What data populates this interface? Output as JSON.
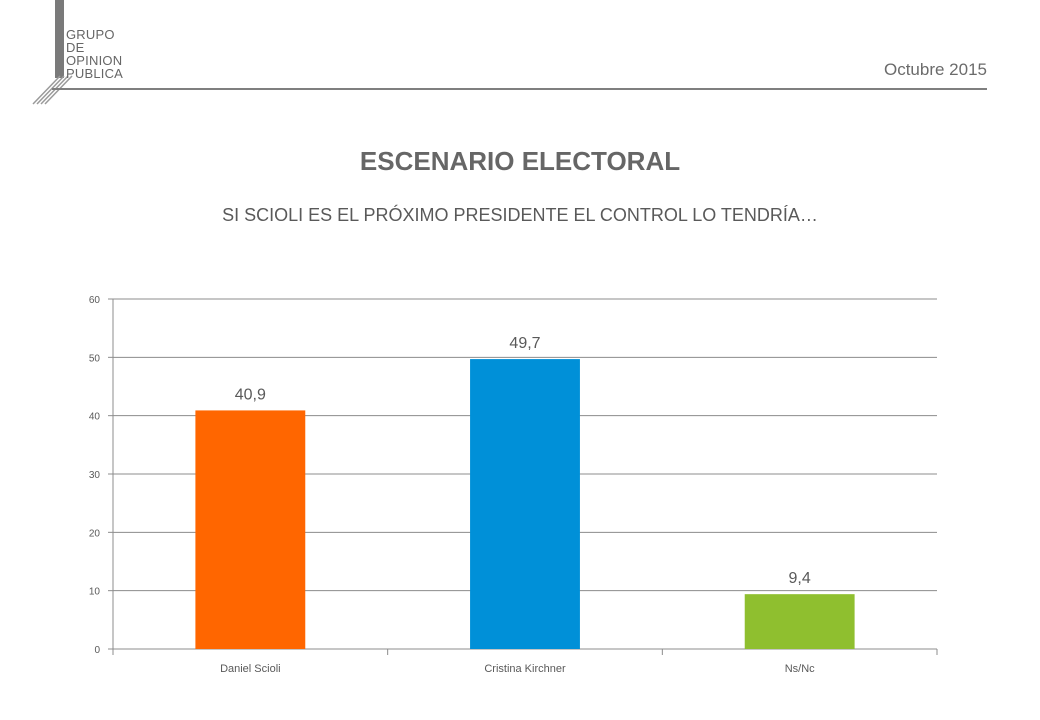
{
  "logo": {
    "lines": [
      "GRUPO",
      "DE",
      "OPINION",
      "PUBLICA"
    ]
  },
  "header": {
    "date": "Octubre 2015"
  },
  "chart_data": {
    "type": "bar",
    "title": "ESCENARIO ELECTORAL",
    "subtitle": "SI SCIOLI ES EL PRÓXIMO PRESIDENTE EL CONTROL LO TENDRÍA…",
    "categories": [
      "Daniel Scioli",
      "Cristina Kirchner",
      "Ns/Nc"
    ],
    "values": [
      40.9,
      49.7,
      9.4
    ],
    "value_labels": [
      "40,9",
      "49,7",
      "9,4"
    ],
    "colors": [
      "#ff6600",
      "#0090d8",
      "#8fbf2f"
    ],
    "ylim": [
      0,
      60
    ],
    "yticks": [
      0,
      10,
      20,
      30,
      40,
      50,
      60
    ],
    "grid": true,
    "legend": "none",
    "xlabel": "",
    "ylabel": ""
  }
}
